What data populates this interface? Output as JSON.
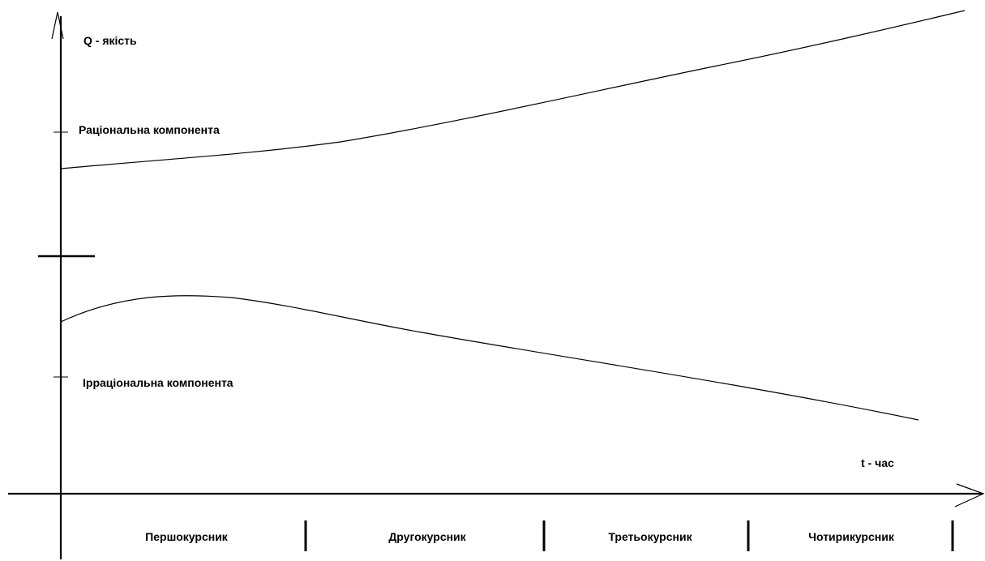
{
  "axes": {
    "y_label": "Q - якість",
    "x_label": "t - час"
  },
  "components": {
    "rational": "Раціональна компонента",
    "irrational": "Ірраціональна компонента"
  },
  "periods": [
    "Першокурсник",
    "Другокурсник",
    "Третьокурсник",
    "Чотирикурсник"
  ],
  "colors": {
    "line": "#000000",
    "background": "#ffffff"
  }
}
